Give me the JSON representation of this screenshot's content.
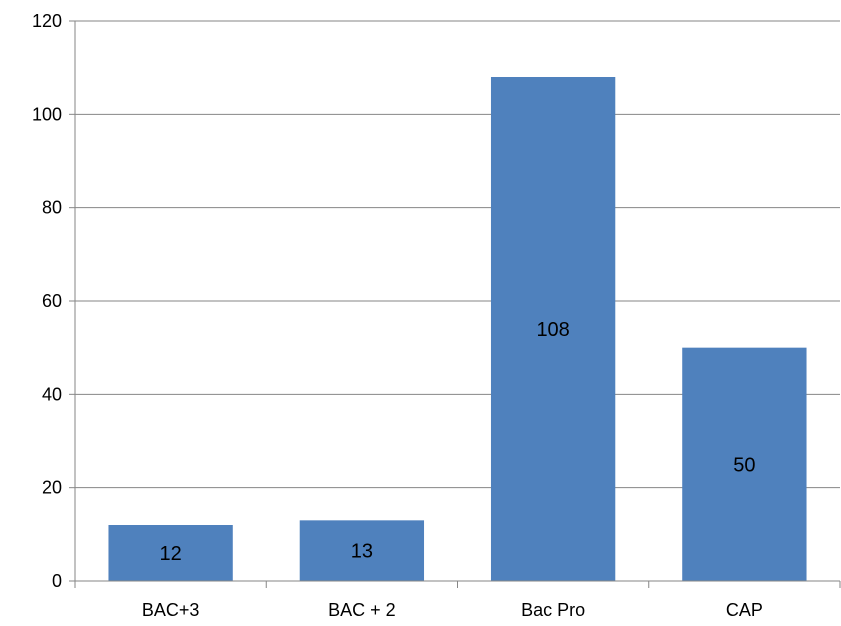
{
  "chart_data": {
    "type": "bar",
    "categories": [
      "BAC+3",
      "BAC + 2",
      "Bac Pro",
      "CAP"
    ],
    "values": [
      12,
      13,
      108,
      50
    ],
    "data_labels": [
      "12",
      "13",
      "108",
      "50"
    ],
    "title": "",
    "xlabel": "",
    "ylabel": "",
    "ylim": [
      0,
      120
    ],
    "yticks": [
      0,
      20,
      40,
      60,
      80,
      100,
      120
    ],
    "grid": true,
    "legend": "none",
    "bar_color": "#4F81BD",
    "grid_color": "#868686",
    "axis_color": "#868686"
  }
}
